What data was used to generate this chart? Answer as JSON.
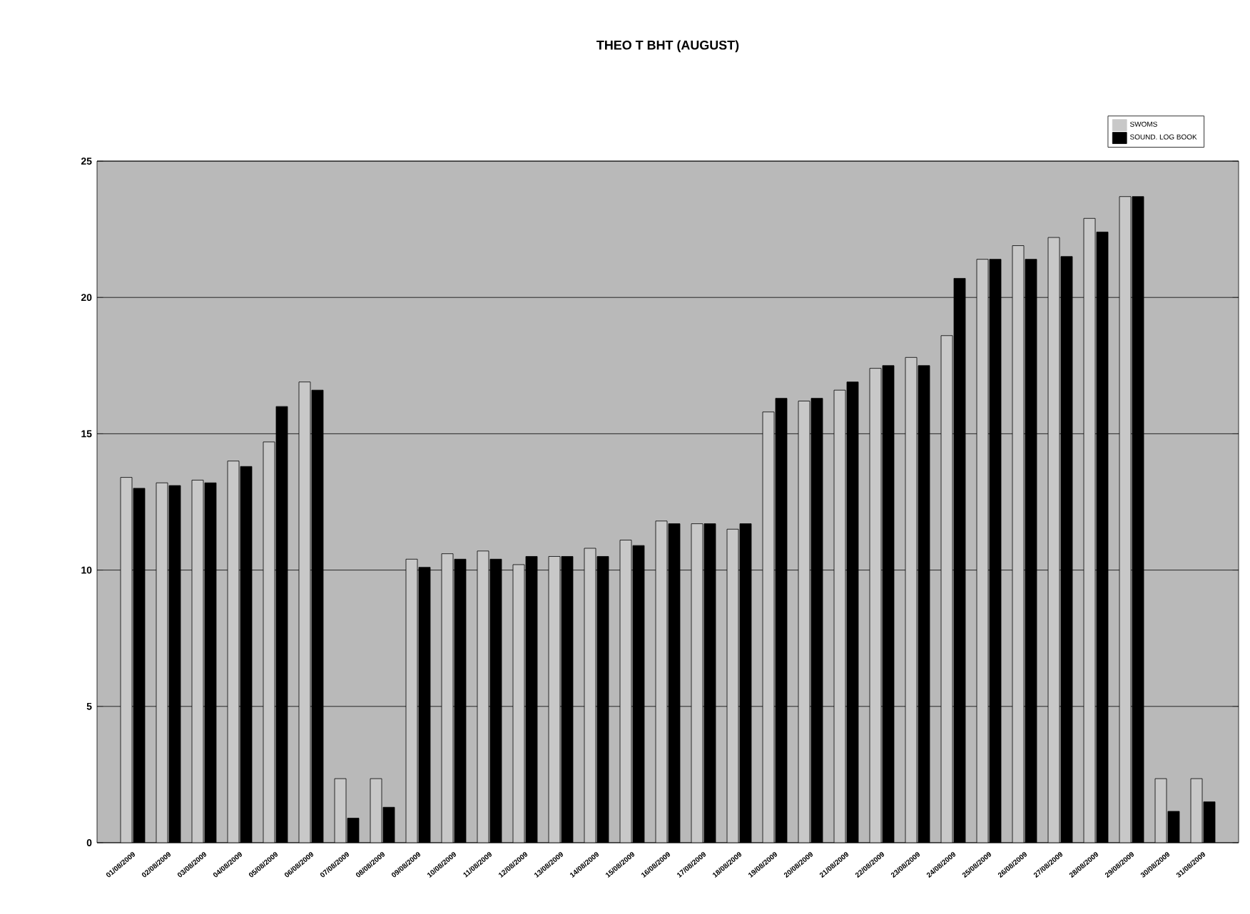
{
  "chart_data": {
    "type": "bar",
    "title": "THEO T BHT (AUGUST)",
    "categories": [
      "01/08/2009",
      "02/08/2009",
      "03/08/2009",
      "04/08/2009",
      "05/08/2009",
      "06/08/2009",
      "07/08/2009",
      "08/08/2009",
      "09/08/2009",
      "10/08/2009",
      "11/08/2009",
      "12/08/2009",
      "13/08/2009",
      "14/08/2009",
      "15/08/2009",
      "16/08/2009",
      "17/08/2009",
      "18/08/2009",
      "19/08/2009",
      "20/08/2009",
      "21/08/2009",
      "22/08/2009",
      "23/08/2009",
      "24/08/2009",
      "25/08/2009",
      "26/08/2009",
      "27/08/2009",
      "28/08/2009",
      "29/08/2009",
      "30/08/2009",
      "31/08/2009"
    ],
    "series": [
      {
        "name": "SWOMS",
        "color": "#c8c8c8",
        "values": [
          13.4,
          13.2,
          13.3,
          14.0,
          14.7,
          16.9,
          2.35,
          2.35,
          10.4,
          10.6,
          10.7,
          10.2,
          10.5,
          10.8,
          11.1,
          11.8,
          11.7,
          11.5,
          15.8,
          16.2,
          16.6,
          17.4,
          17.8,
          18.6,
          21.4,
          21.9,
          22.2,
          22.9,
          23.7,
          2.35,
          2.35
        ]
      },
      {
        "name": "SOUND. LOG BOOK",
        "color": "#000000",
        "values": [
          13.0,
          13.1,
          13.2,
          13.8,
          16.0,
          16.6,
          0.9,
          1.3,
          10.1,
          10.4,
          10.4,
          10.5,
          10.5,
          10.5,
          10.9,
          11.7,
          11.7,
          11.7,
          16.3,
          16.3,
          16.9,
          17.5,
          17.5,
          20.7,
          21.4,
          21.4,
          21.5,
          22.4,
          23.7,
          1.15,
          1.5
        ]
      }
    ],
    "ylim": [
      0,
      25
    ],
    "yticks": [
      0,
      5,
      10,
      15,
      20,
      25
    ],
    "grid": "y",
    "legend": "top right"
  }
}
